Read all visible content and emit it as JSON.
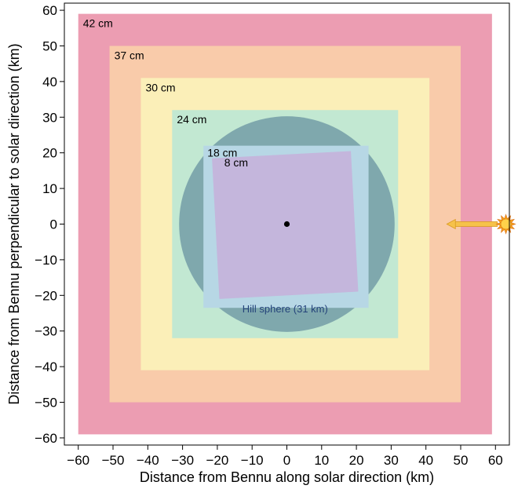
{
  "chart_data": {
    "type": "area",
    "xlabel": "Distance from Bennu along solar direction (km)",
    "ylabel": "Distance from Bennu perpendicular to solar direction (km)",
    "xlim": [
      -64,
      64
    ],
    "ylim": [
      -62,
      62
    ],
    "xticks": [
      -60,
      -50,
      -40,
      -30,
      -20,
      -10,
      0,
      10,
      20,
      30,
      40,
      50,
      60
    ],
    "yticks": [
      -60,
      -50,
      -40,
      -30,
      -20,
      -10,
      0,
      10,
      20,
      30,
      40,
      50,
      60
    ],
    "grid": false,
    "regions": [
      {
        "name": "42 cm",
        "color": "#ec9db2",
        "x": [
          -60,
          59
        ],
        "y": [
          -59,
          59
        ],
        "rotation_deg": 0
      },
      {
        "name": "37 cm",
        "color": "#f9cbaa",
        "x": [
          -51,
          50
        ],
        "y": [
          -50,
          50
        ],
        "rotation_deg": 0
      },
      {
        "name": "30 cm",
        "color": "#fbefb8",
        "x": [
          -42,
          41
        ],
        "y": [
          -41,
          41
        ],
        "rotation_deg": 0
      },
      {
        "name": "24 cm",
        "color": "#c2e8d2",
        "x": [
          -33,
          32
        ],
        "y": [
          -32,
          32
        ],
        "rotation_deg": 0
      },
      {
        "name": "18 cm",
        "color": "#b7d7e5",
        "x": [
          -24,
          23.5
        ],
        "y": [
          -23.5,
          22
        ],
        "rotation_deg": 0
      },
      {
        "name": "8 cm",
        "color": "#c4b6dc",
        "x": [
          -20.5,
          19.5
        ],
        "y": [
          -20,
          19.5
        ],
        "rotation_deg": -3
      }
    ],
    "hill_sphere": {
      "label": "Hill sphere (31 km)",
      "radius": 31,
      "color": "#7fa8ad"
    },
    "bennu": {
      "x": 0,
      "y": 0
    },
    "sun": {
      "x": 63,
      "y": 0,
      "arrow_to_x": 46
    }
  }
}
